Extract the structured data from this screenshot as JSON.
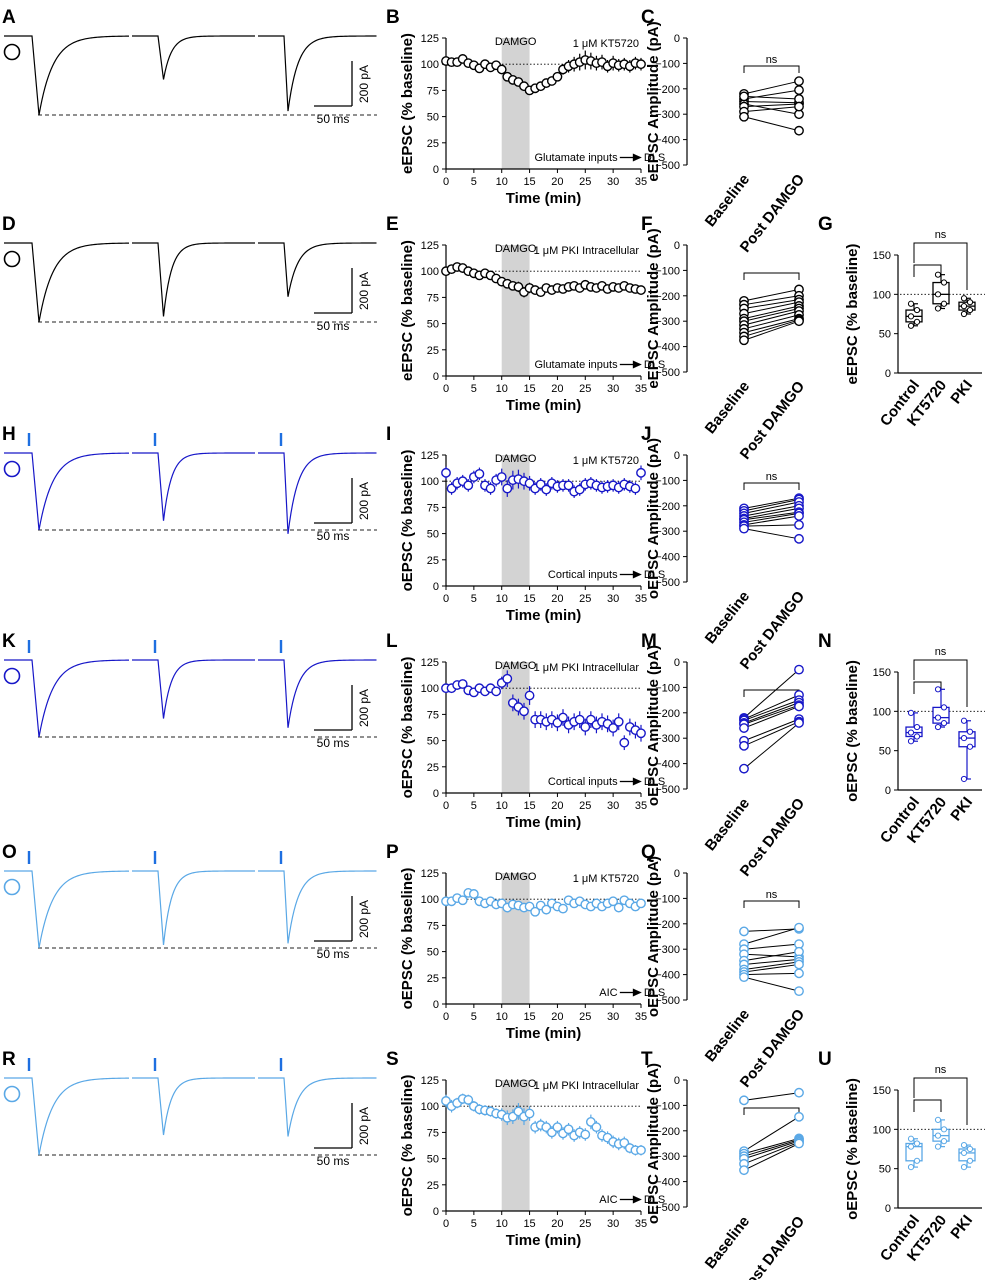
{
  "colors": {
    "black": "#000000",
    "dark_blue": "#1717c8",
    "light_blue": "#5aa8e6",
    "shade": "#d3d3d3"
  },
  "scale_bar": {
    "amplitude": "200 pA",
    "time": "50 ms"
  },
  "rows": [
    {
      "color": "#000000",
      "stim": false,
      "trace_panel": "A",
      "time_panel": "B",
      "paired_panel": "C",
      "summary_panel": null,
      "ylabel": "eEPSC (% baseline)",
      "paired_ylabel": "eEPSC Amplitude (pA)",
      "drug": "1 μM KT5720",
      "shade_label": "DAMGO",
      "pathway": [
        "Glutamate inputs",
        "DLS"
      ],
      "sig": "ns",
      "peaks": [
        1.0,
        0.55,
        0.95
      ]
    },
    {
      "color": "#000000",
      "stim": false,
      "trace_panel": "D",
      "time_panel": "E",
      "paired_panel": "F",
      "summary_panel": "G",
      "ylabel": "eEPSC (% baseline)",
      "paired_ylabel": "eEPSC Amplitude (pA)",
      "drug": "1 μM PKI Intracellular",
      "shade_label": "DAMGO",
      "pathway": [
        "Glutamate inputs",
        "DLS"
      ],
      "sig": "",
      "peaks": [
        1.0,
        0.93,
        0.68
      ]
    },
    {
      "color": "#1717c8",
      "stim": true,
      "trace_panel": "H",
      "time_panel": "I",
      "paired_panel": "J",
      "summary_panel": null,
      "ylabel": "oEPSC (% baseline)",
      "paired_ylabel": "oEPSC Amplitude (pA)",
      "drug": "1 μM KT5720",
      "shade_label": "DAMGO",
      "pathway": [
        "Cortical inputs",
        "DLS"
      ],
      "sig": "ns",
      "peaks": [
        1.0,
        0.88,
        1.05
      ]
    },
    {
      "color": "#1717c8",
      "stim": true,
      "trace_panel": "K",
      "time_panel": "L",
      "paired_panel": "M",
      "summary_panel": "N",
      "ylabel": "oEPSC (% baseline)",
      "paired_ylabel": "oEPSC Amplitude (pA)",
      "drug": "1 μM PKI Intracellular",
      "shade_label": "DAMGO",
      "pathway": [
        "Cortical inputs",
        "DLS"
      ],
      "sig": "",
      "peaks": [
        1.0,
        0.76,
        0.88
      ]
    },
    {
      "color": "#5aa8e6",
      "stim": true,
      "trace_panel": "O",
      "time_panel": "P",
      "paired_panel": "Q",
      "summary_panel": null,
      "ylabel": "oEPSC (% baseline)",
      "paired_ylabel": "oEPSC Amplitude (pA)",
      "drug": "1 μM KT5720",
      "shade_label": "DAMGO",
      "pathway": [
        "AIC",
        "DLS"
      ],
      "sig": "ns",
      "peaks": [
        1.0,
        0.96,
        0.94
      ]
    },
    {
      "color": "#5aa8e6",
      "stim": true,
      "trace_panel": "R",
      "time_panel": "S",
      "paired_panel": "T",
      "summary_panel": "U",
      "ylabel": "oEPSC (% baseline)",
      "paired_ylabel": "oEPSC Amplitude (pA)",
      "drug": "1 μM PKI Intracellular",
      "shade_label": "DAMGO",
      "pathway": [
        "AIC",
        "DLS"
      ],
      "sig": "",
      "peaks": [
        1.0,
        0.74,
        0.76
      ]
    }
  ],
  "chart_data": [
    {
      "type": "scatter",
      "panel": "B",
      "title": "",
      "xlabel": "Time (min)",
      "ylabel": "eEPSC (% baseline)",
      "xlim": [
        0,
        35
      ],
      "ylim": [
        0,
        125
      ],
      "shaded": [
        10,
        15
      ],
      "x": [
        0,
        1,
        2,
        3,
        4,
        5,
        6,
        7,
        8,
        9,
        10,
        11,
        12,
        13,
        14,
        15,
        16,
        17,
        18,
        19,
        20,
        21,
        22,
        23,
        24,
        25,
        26,
        27,
        28,
        29,
        30,
        31,
        32,
        33,
        34,
        35
      ],
      "y": [
        103,
        102,
        102,
        105,
        101,
        99,
        96,
        100,
        97,
        99,
        95,
        88,
        85,
        83,
        79,
        75,
        77,
        79,
        82,
        84,
        88,
        95,
        98,
        100,
        102,
        104,
        103,
        101,
        102,
        98,
        101,
        99,
        100,
        98,
        101,
        100
      ],
      "err": [
        3,
        3,
        2,
        4,
        3,
        3,
        3,
        3,
        3,
        3,
        4,
        4,
        4,
        4,
        4,
        4,
        4,
        4,
        4,
        4,
        4,
        5,
        6,
        7,
        8,
        9,
        8,
        7,
        7,
        6,
        7,
        6,
        6,
        6,
        6,
        6
      ]
    },
    {
      "type": "scatter",
      "panel": "C",
      "title": "",
      "xlabel": "",
      "ylabel": "eEPSC Amplitude (pA)",
      "categories": [
        "Baseline",
        "Post DAMGO"
      ],
      "ylim": [
        -500,
        0
      ],
      "pairs": [
        [
          -220,
          -170
        ],
        [
          -240,
          -205
        ],
        [
          -250,
          -255
        ],
        [
          -260,
          -300
        ],
        [
          -270,
          -260
        ],
        [
          -230,
          -240
        ],
        [
          -290,
          -270
        ],
        [
          -310,
          -365
        ]
      ]
    },
    {
      "type": "scatter",
      "panel": "E",
      "title": "",
      "xlabel": "Time (min)",
      "ylabel": "eEPSC (% baseline)",
      "xlim": [
        0,
        35
      ],
      "ylim": [
        0,
        125
      ],
      "shaded": [
        10,
        15
      ],
      "x": [
        0,
        1,
        2,
        3,
        4,
        5,
        6,
        7,
        8,
        9,
        10,
        11,
        12,
        13,
        14,
        15,
        16,
        17,
        18,
        19,
        20,
        21,
        22,
        23,
        24,
        25,
        26,
        27,
        28,
        29,
        30,
        31,
        32,
        33,
        34,
        35
      ],
      "y": [
        100,
        102,
        104,
        103,
        100,
        98,
        96,
        98,
        96,
        93,
        90,
        88,
        86,
        85,
        80,
        84,
        82,
        80,
        84,
        82,
        84,
        83,
        85,
        86,
        84,
        87,
        85,
        84,
        86,
        83,
        85,
        84,
        86,
        84,
        83,
        82
      ],
      "err": [
        3,
        3,
        3,
        3,
        3,
        3,
        3,
        3,
        3,
        3,
        4,
        4,
        4,
        5,
        5,
        5,
        4,
        4,
        4,
        4,
        4,
        4,
        4,
        4,
        4,
        4,
        4,
        4,
        4,
        4,
        4,
        4,
        4,
        4,
        4,
        4
      ]
    },
    {
      "type": "scatter",
      "panel": "F",
      "title": "",
      "xlabel": "",
      "ylabel": "eEPSC Amplitude (pA)",
      "categories": [
        "Baseline",
        "Post DAMGO"
      ],
      "ylim": [
        -500,
        0
      ],
      "pairs": [
        [
          -220,
          -175
        ],
        [
          -235,
          -200
        ],
        [
          -250,
          -215
        ],
        [
          -270,
          -225
        ],
        [
          -290,
          -240
        ],
        [
          -300,
          -250
        ],
        [
          -315,
          -260
        ],
        [
          -330,
          -275
        ],
        [
          -345,
          -290
        ],
        [
          -360,
          -295
        ],
        [
          -375,
          -300
        ]
      ]
    },
    {
      "type": "box",
      "panel": "G",
      "title": "",
      "xlabel": "",
      "ylabel": "eEPSC (% baseline)",
      "categories": [
        "Control",
        "KT5720",
        "PKI"
      ],
      "ylim": [
        0,
        150
      ],
      "boxes": [
        {
          "min": 60,
          "q1": 65,
          "median": 72,
          "q3": 80,
          "max": 88
        },
        {
          "min": 82,
          "q1": 88,
          "median": 100,
          "q3": 115,
          "max": 125
        },
        {
          "min": 75,
          "q1": 80,
          "median": 85,
          "q3": 90,
          "max": 95
        }
      ]
    },
    {
      "type": "scatter",
      "panel": "I",
      "title": "",
      "xlabel": "Time (min)",
      "ylabel": "oEPSC (% baseline)",
      "xlim": [
        0,
        35
      ],
      "ylim": [
        0,
        125
      ],
      "shaded": [
        10,
        15
      ],
      "x": [
        0,
        1,
        2,
        3,
        4,
        5,
        6,
        7,
        8,
        9,
        10,
        11,
        12,
        13,
        14,
        15,
        16,
        17,
        18,
        19,
        20,
        21,
        22,
        23,
        24,
        25,
        26,
        27,
        28,
        29,
        30,
        31,
        32,
        33,
        34,
        35
      ],
      "y": [
        108,
        93,
        98,
        100,
        96,
        104,
        107,
        96,
        93,
        101,
        104,
        93,
        101,
        102,
        100,
        98,
        93,
        97,
        92,
        98,
        95,
        96,
        96,
        90,
        92,
        97,
        98,
        96,
        94,
        95,
        96,
        94,
        97,
        95,
        93,
        108
      ],
      "err": [
        6,
        6,
        6,
        6,
        6,
        6,
        6,
        6,
        6,
        6,
        8,
        8,
        9,
        9,
        8,
        7,
        6,
        6,
        6,
        6,
        6,
        6,
        6,
        6,
        6,
        6,
        6,
        6,
        6,
        6,
        6,
        6,
        6,
        6,
        6,
        7
      ]
    },
    {
      "type": "scatter",
      "panel": "J",
      "title": "",
      "xlabel": "",
      "ylabel": "oEPSC Amplitude (pA)",
      "categories": [
        "Baseline",
        "Post DAMGO"
      ],
      "ylim": [
        -500,
        0
      ],
      "pairs": [
        [
          -210,
          -170
        ],
        [
          -220,
          -175
        ],
        [
          -230,
          -185
        ],
        [
          -240,
          -200
        ],
        [
          -250,
          -210
        ],
        [
          -255,
          -225
        ],
        [
          -265,
          -230
        ],
        [
          -275,
          -240
        ],
        [
          -280,
          -275
        ],
        [
          -290,
          -330
        ]
      ]
    },
    {
      "type": "scatter",
      "panel": "L",
      "title": "",
      "xlabel": "Time (min)",
      "ylabel": "oEPSC (% baseline)",
      "xlim": [
        0,
        35
      ],
      "ylim": [
        0,
        125
      ],
      "shaded": [
        10,
        15
      ],
      "x": [
        0,
        1,
        2,
        3,
        4,
        5,
        6,
        7,
        8,
        9,
        10,
        11,
        12,
        13,
        14,
        15,
        16,
        17,
        18,
        19,
        20,
        21,
        22,
        23,
        24,
        25,
        26,
        27,
        28,
        29,
        30,
        31,
        32,
        33,
        34,
        35
      ],
      "y": [
        100,
        100,
        103,
        104,
        98,
        96,
        100,
        97,
        100,
        97,
        105,
        109,
        86,
        82,
        78,
        93,
        70,
        70,
        68,
        70,
        67,
        72,
        65,
        68,
        70,
        63,
        70,
        65,
        68,
        66,
        62,
        68,
        48,
        63,
        60,
        57
      ],
      "err": [
        4,
        4,
        4,
        4,
        4,
        4,
        4,
        4,
        4,
        4,
        6,
        8,
        8,
        8,
        8,
        9,
        8,
        8,
        8,
        8,
        8,
        8,
        8,
        8,
        8,
        8,
        8,
        8,
        8,
        8,
        8,
        8,
        7,
        8,
        8,
        8
      ]
    },
    {
      "type": "scatter",
      "panel": "M",
      "title": "",
      "xlabel": "",
      "ylabel": "oEPSC Amplitude (pA)",
      "categories": [
        "Baseline",
        "Post DAMGO"
      ],
      "ylim": [
        -500,
        0
      ],
      "pairs": [
        [
          -220,
          -30
        ],
        [
          -225,
          -130
        ],
        [
          -230,
          -150
        ],
        [
          -240,
          -160
        ],
        [
          -245,
          -170
        ],
        [
          -260,
          -175
        ],
        [
          -310,
          -225
        ],
        [
          -330,
          -235
        ],
        [
          -420,
          -240
        ]
      ]
    },
    {
      "type": "box",
      "panel": "N",
      "title": "",
      "xlabel": "",
      "ylabel": "oEPSC (% baseline)",
      "categories": [
        "Control",
        "KT5720",
        "PKI"
      ],
      "ylim": [
        0,
        150
      ],
      "boxes": [
        {
          "min": 62,
          "q1": 68,
          "median": 73,
          "q3": 80,
          "max": 98
        },
        {
          "min": 80,
          "q1": 85,
          "median": 92,
          "q3": 105,
          "max": 128
        },
        {
          "min": 14,
          "q1": 55,
          "median": 66,
          "q3": 74,
          "max": 88
        }
      ]
    },
    {
      "type": "scatter",
      "panel": "P",
      "title": "",
      "xlabel": "Time (min)",
      "ylabel": "oEPSC (% baseline)",
      "xlim": [
        0,
        35
      ],
      "ylim": [
        0,
        125
      ],
      "shaded": [
        10,
        15
      ],
      "x": [
        0,
        1,
        2,
        3,
        4,
        5,
        6,
        7,
        8,
        9,
        10,
        11,
        12,
        13,
        14,
        15,
        16,
        17,
        18,
        19,
        20,
        21,
        22,
        23,
        24,
        25,
        26,
        27,
        28,
        29,
        30,
        31,
        32,
        33,
        34,
        35
      ],
      "y": [
        98,
        98,
        101,
        99,
        106,
        105,
        98,
        96,
        98,
        95,
        96,
        92,
        95,
        94,
        92,
        93,
        88,
        94,
        90,
        96,
        93,
        91,
        99,
        96,
        98,
        95,
        93,
        96,
        93,
        96,
        98,
        92,
        99,
        96,
        93,
        96
      ],
      "err": [
        3,
        3,
        3,
        3,
        3,
        3,
        3,
        3,
        3,
        3,
        4,
        4,
        4,
        4,
        4,
        4,
        4,
        4,
        4,
        4,
        4,
        4,
        4,
        4,
        4,
        4,
        4,
        4,
        4,
        4,
        4,
        4,
        4,
        4,
        4,
        4
      ]
    },
    {
      "type": "scatter",
      "panel": "Q",
      "title": "",
      "xlabel": "",
      "ylabel": "oEPSC Amplitude (pA)",
      "categories": [
        "Baseline",
        "Post DAMGO"
      ],
      "ylim": [
        -500,
        0
      ],
      "pairs": [
        [
          -230,
          -220
        ],
        [
          -280,
          -215
        ],
        [
          -300,
          -280
        ],
        [
          -320,
          -330
        ],
        [
          -345,
          -310
        ],
        [
          -360,
          -340
        ],
        [
          -380,
          -350
        ],
        [
          -390,
          -360
        ],
        [
          -400,
          -395
        ],
        [
          -410,
          -465
        ]
      ]
    },
    {
      "type": "scatter",
      "panel": "S",
      "title": "",
      "xlabel": "Time (min)",
      "ylabel": "oEPSC (% baseline)",
      "xlim": [
        0,
        35
      ],
      "ylim": [
        0,
        125
      ],
      "shaded": [
        10,
        15
      ],
      "x": [
        0,
        1,
        2,
        3,
        4,
        5,
        6,
        7,
        8,
        9,
        10,
        11,
        12,
        13,
        14,
        15,
        16,
        17,
        18,
        19,
        20,
        21,
        22,
        23,
        24,
        25,
        26,
        27,
        28,
        29,
        30,
        31,
        32,
        33,
        34,
        35
      ],
      "y": [
        105,
        100,
        103,
        107,
        106,
        100,
        97,
        96,
        95,
        93,
        92,
        89,
        90,
        95,
        90,
        93,
        80,
        82,
        80,
        75,
        80,
        74,
        78,
        72,
        75,
        73,
        85,
        80,
        72,
        70,
        66,
        64,
        65,
        60,
        58,
        58
      ],
      "err": [
        6,
        6,
        5,
        5,
        5,
        5,
        5,
        5,
        5,
        5,
        6,
        7,
        7,
        8,
        8,
        7,
        6,
        6,
        6,
        6,
        6,
        6,
        6,
        6,
        6,
        6,
        7,
        6,
        6,
        6,
        6,
        6,
        6,
        5,
        5,
        5
      ]
    },
    {
      "type": "scatter",
      "panel": "T",
      "title": "",
      "xlabel": "",
      "ylabel": "oEPSC Amplitude (pA)",
      "categories": [
        "Baseline",
        "Post DAMGO"
      ],
      "ylim": [
        -500,
        0
      ],
      "pairs": [
        [
          -80,
          -50
        ],
        [
          -280,
          -145
        ],
        [
          -290,
          -230
        ],
        [
          -300,
          -235
        ],
        [
          -310,
          -240
        ],
        [
          -330,
          -245
        ],
        [
          -355,
          -250
        ]
      ]
    },
    {
      "type": "box",
      "panel": "U",
      "title": "",
      "xlabel": "",
      "ylabel": "oEPSC (% baseline)",
      "categories": [
        "Control",
        "KT5720",
        "PKI"
      ],
      "ylim": [
        0,
        150
      ],
      "boxes": [
        {
          "min": 52,
          "q1": 60,
          "median": 78,
          "q3": 82,
          "max": 88
        },
        {
          "min": 78,
          "q1": 85,
          "median": 92,
          "q3": 100,
          "max": 112
        },
        {
          "min": 52,
          "q1": 60,
          "median": 70,
          "q3": 75,
          "max": 80
        }
      ]
    }
  ]
}
